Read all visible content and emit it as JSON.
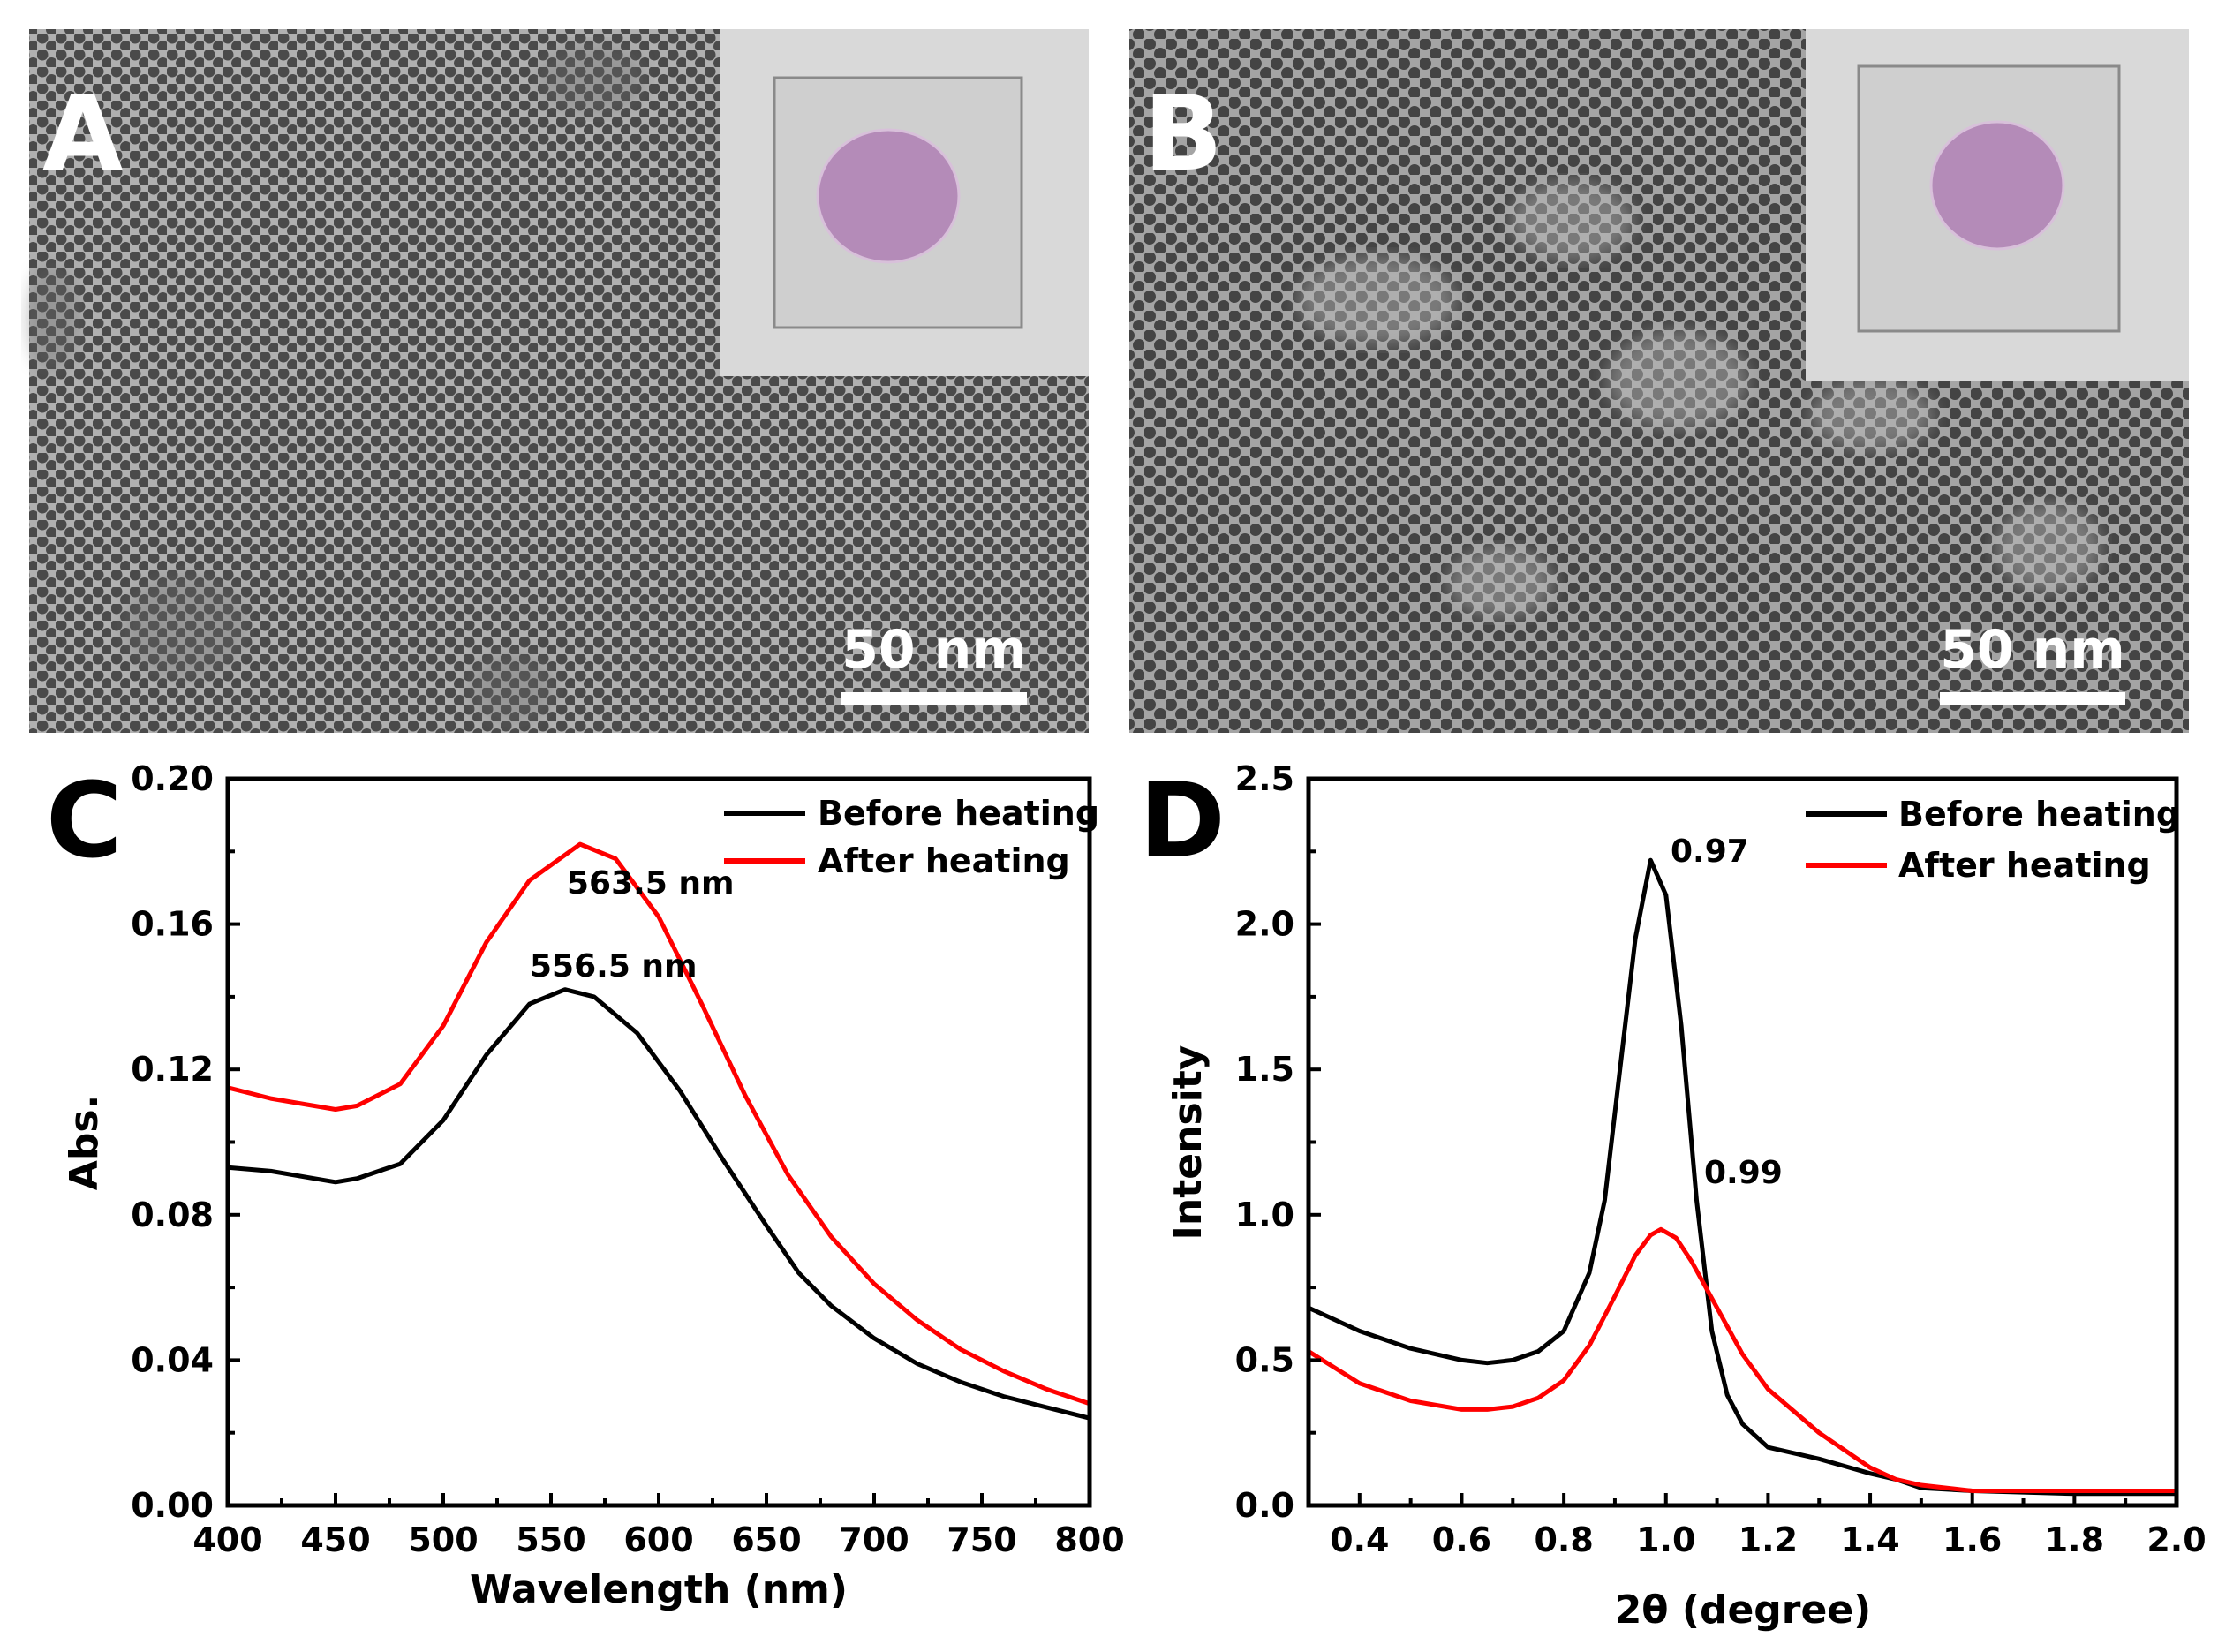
{
  "panels": {
    "A": {
      "letter": "A",
      "scale_bar": "50 nm"
    },
    "B": {
      "letter": "B",
      "scale_bar": "50 nm"
    },
    "C": {
      "letter": "C"
    },
    "D": {
      "letter": "D"
    }
  },
  "colors": {
    "before": "#000000",
    "after": "#ff0000",
    "film": "#b48bb8",
    "tem_bg": "#a9a9a9",
    "particle": "#4a4a4a"
  },
  "chart_data": [
    {
      "panel": "C",
      "type": "line",
      "xlabel": "Wavelength (nm)",
      "ylabel": "Abs.",
      "xlim": [
        400,
        800
      ],
      "ylim": [
        0,
        0.2
      ],
      "xticks": [
        "400",
        "450",
        "500",
        "550",
        "600",
        "650",
        "700",
        "750",
        "800"
      ],
      "xtick_values": [
        400,
        450,
        500,
        550,
        600,
        650,
        700,
        750,
        800
      ],
      "yticks": [
        "0.00",
        "0.04",
        "0.08",
        "0.12",
        "0.16",
        "0.20"
      ],
      "ytick_values": [
        0,
        0.04,
        0.08,
        0.12,
        0.16,
        0.2
      ],
      "legend_position": "top-right",
      "series": [
        {
          "name": "Before heating",
          "color": "#000000",
          "x": [
            400,
            420,
            440,
            450,
            460,
            480,
            500,
            520,
            540,
            556.5,
            570,
            590,
            610,
            630,
            650,
            665,
            680,
            700,
            720,
            740,
            760,
            780,
            800
          ],
          "y": [
            0.093,
            0.092,
            0.09,
            0.089,
            0.09,
            0.094,
            0.106,
            0.124,
            0.138,
            0.142,
            0.14,
            0.13,
            0.114,
            0.095,
            0.077,
            0.064,
            0.055,
            0.046,
            0.039,
            0.034,
            0.03,
            0.027,
            0.024
          ]
        },
        {
          "name": "After heating",
          "color": "#ff0000",
          "x": [
            400,
            420,
            440,
            450,
            460,
            480,
            500,
            520,
            540,
            563.5,
            580,
            600,
            620,
            640,
            660,
            680,
            700,
            720,
            740,
            760,
            780,
            800
          ],
          "y": [
            0.115,
            0.112,
            0.11,
            0.109,
            0.11,
            0.116,
            0.132,
            0.155,
            0.172,
            0.182,
            0.178,
            0.162,
            0.138,
            0.113,
            0.091,
            0.074,
            0.061,
            0.051,
            0.043,
            0.037,
            0.032,
            0.028
          ]
        }
      ],
      "annotations": [
        {
          "text": "563.5 nm",
          "x": 563.5,
          "y": 0.182
        },
        {
          "text": "556.5 nm",
          "x": 556.5,
          "y": 0.142
        }
      ]
    },
    {
      "panel": "D",
      "type": "line",
      "xlabel": "2θ (degree)",
      "ylabel": "Intensity",
      "xlim": [
        0.3,
        2.0
      ],
      "ylim": [
        0,
        2.5
      ],
      "xticks": [
        "0.4",
        "0.6",
        "0.8",
        "1.0",
        "1.2",
        "1.4",
        "1.6",
        "1.8",
        "2.0"
      ],
      "xtick_values": [
        0.4,
        0.6,
        0.8,
        1.0,
        1.2,
        1.4,
        1.6,
        1.8,
        2.0
      ],
      "yticks": [
        "0.0",
        "0.5",
        "1.0",
        "1.5",
        "2.0",
        "2.5"
      ],
      "ytick_values": [
        0,
        0.5,
        1.0,
        1.5,
        2.0,
        2.5
      ],
      "legend_position": "top-right",
      "series": [
        {
          "name": "Before heating",
          "color": "#000000",
          "x": [
            0.3,
            0.4,
            0.5,
            0.6,
            0.65,
            0.7,
            0.75,
            0.8,
            0.85,
            0.88,
            0.91,
            0.94,
            0.97,
            1.0,
            1.03,
            1.06,
            1.09,
            1.12,
            1.15,
            1.2,
            1.3,
            1.4,
            1.45,
            1.5,
            1.6,
            1.8,
            2.0
          ],
          "y": [
            0.68,
            0.6,
            0.54,
            0.5,
            0.49,
            0.5,
            0.53,
            0.6,
            0.8,
            1.05,
            1.5,
            1.95,
            2.22,
            2.1,
            1.65,
            1.05,
            0.6,
            0.38,
            0.28,
            0.2,
            0.16,
            0.11,
            0.09,
            0.06,
            0.05,
            0.04,
            0.04
          ]
        },
        {
          "name": "After heating",
          "color": "#ff0000",
          "x": [
            0.3,
            0.4,
            0.5,
            0.6,
            0.65,
            0.7,
            0.75,
            0.8,
            0.85,
            0.9,
            0.94,
            0.97,
            0.99,
            1.02,
            1.05,
            1.1,
            1.15,
            1.2,
            1.3,
            1.4,
            1.45,
            1.5,
            1.6,
            1.8,
            2.0
          ],
          "y": [
            0.53,
            0.42,
            0.36,
            0.33,
            0.33,
            0.34,
            0.37,
            0.43,
            0.55,
            0.72,
            0.86,
            0.93,
            0.95,
            0.92,
            0.84,
            0.68,
            0.52,
            0.4,
            0.25,
            0.13,
            0.09,
            0.07,
            0.05,
            0.05,
            0.05
          ]
        }
      ],
      "annotations": [
        {
          "text": "0.97",
          "x": 0.97,
          "y": 2.22
        },
        {
          "text": "0.99",
          "x": 0.99,
          "y": 0.95
        }
      ]
    }
  ]
}
